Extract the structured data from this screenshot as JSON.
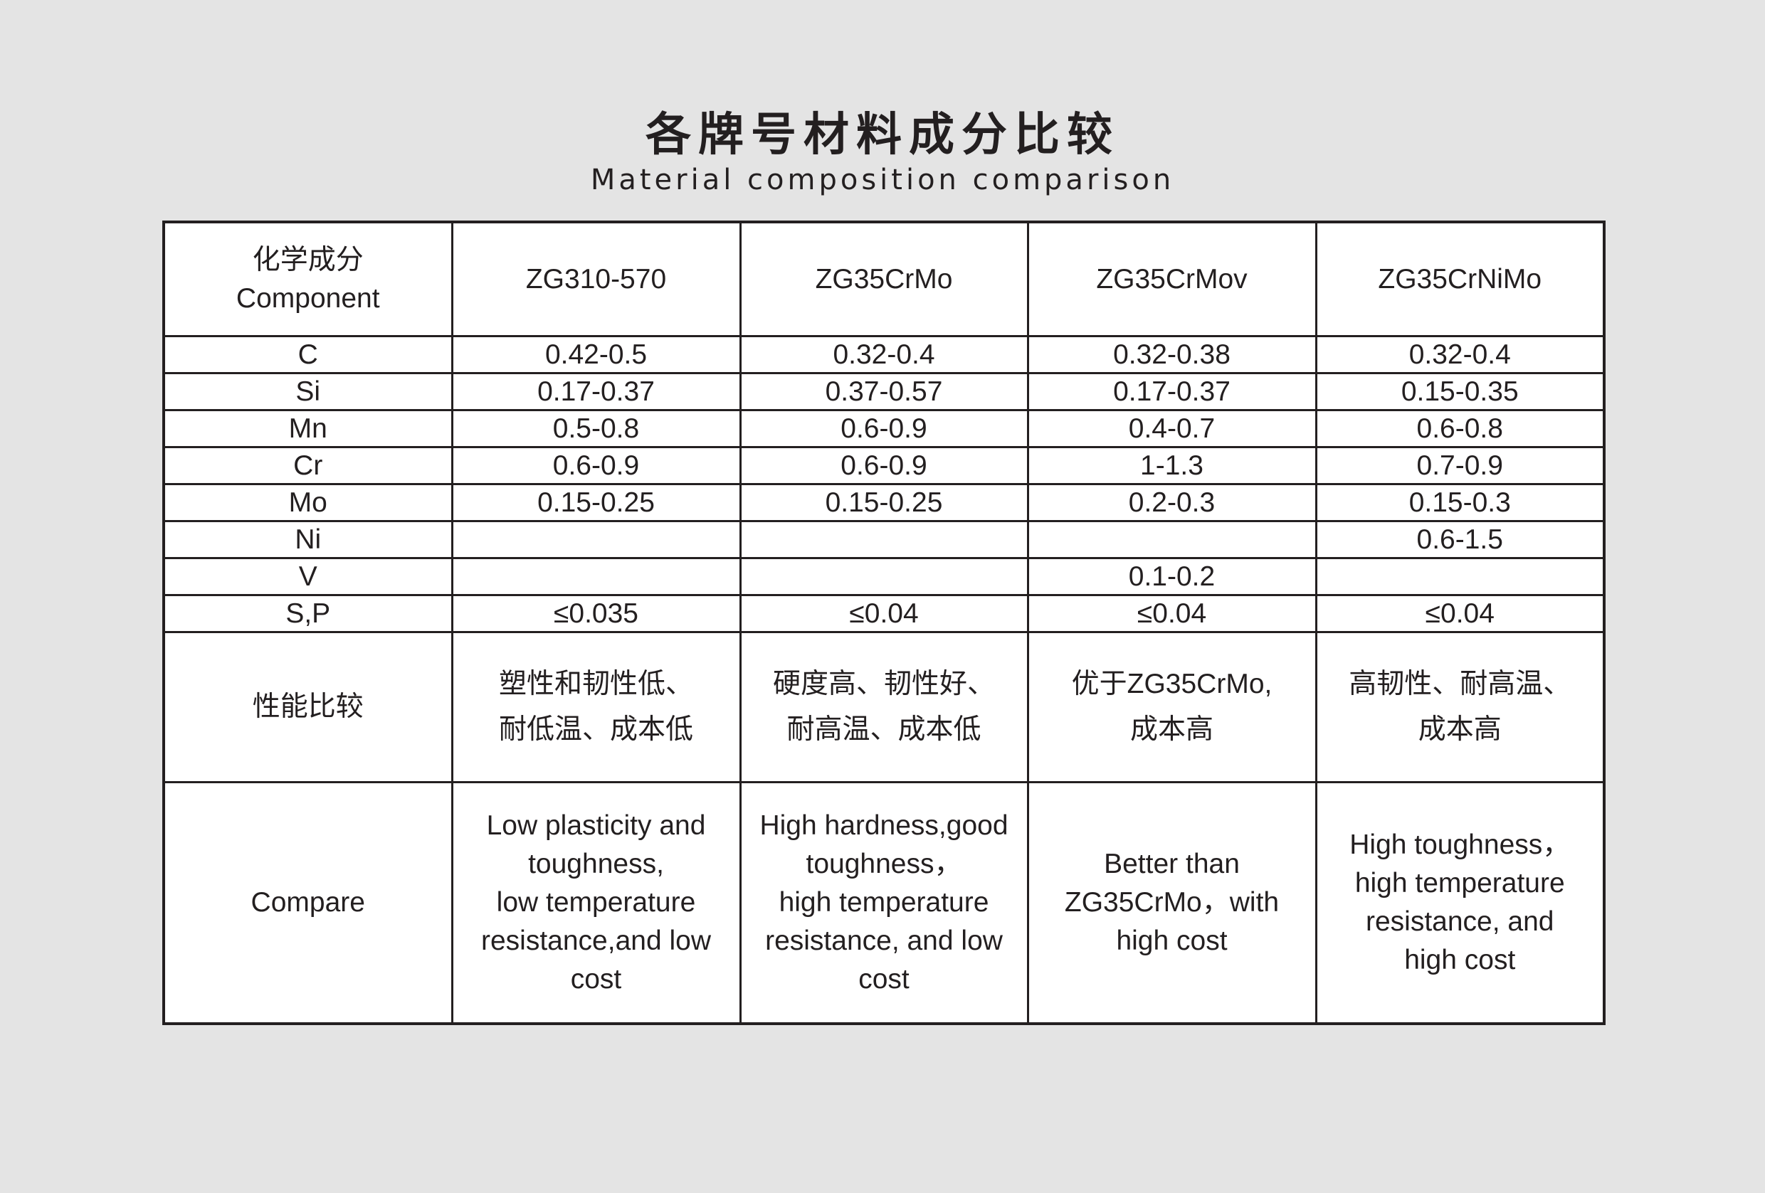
{
  "title": "各牌号材料成分比较",
  "subtitle": "Material composition comparison",
  "table": {
    "header": {
      "component_cn": "化学成分",
      "component_en": "Component",
      "grades": [
        "ZG310-570",
        "ZG35CrMo",
        "ZG35CrMov",
        "ZG35CrNiMo"
      ]
    },
    "rows": [
      {
        "element": "C",
        "values": [
          "0.42-0.5",
          "0.32-0.4",
          "0.32-0.38",
          "0.32-0.4"
        ]
      },
      {
        "element": "Si",
        "values": [
          "0.17-0.37",
          "0.37-0.57",
          "0.17-0.37",
          "0.15-0.35"
        ]
      },
      {
        "element": "Mn",
        "values": [
          "0.5-0.8",
          "0.6-0.9",
          "0.4-0.7",
          "0.6-0.8"
        ]
      },
      {
        "element": "Cr",
        "values": [
          "0.6-0.9",
          "0.6-0.9",
          "1-1.3",
          "0.7-0.9"
        ]
      },
      {
        "element": "Mo",
        "values": [
          "0.15-0.25",
          "0.15-0.25",
          "0.2-0.3",
          "0.15-0.3"
        ]
      },
      {
        "element": "Ni",
        "values": [
          "",
          "",
          "",
          "0.6-1.5"
        ]
      },
      {
        "element": "V",
        "values": [
          "",
          "",
          "0.1-0.2",
          ""
        ]
      },
      {
        "element": "S,P",
        "values": [
          "≤0.035",
          "≤0.04",
          "≤0.04",
          "≤0.04"
        ]
      }
    ],
    "performance": {
      "label": "性能比较",
      "values": [
        [
          "塑性和韧性低、",
          "耐低温、成本低"
        ],
        [
          "硬度高、韧性好、",
          "耐高温、成本低"
        ],
        [
          "优于ZG35CrMo,",
          "成本高"
        ],
        [
          "高韧性、耐高温、",
          "成本高"
        ]
      ]
    },
    "compare": {
      "label": "Compare",
      "values": [
        [
          "Low plasticity and",
          "toughness,",
          "low temperature",
          "resistance,and low",
          "cost"
        ],
        [
          "High hardness,good",
          "toughness，",
          "high temperature",
          "resistance, and low",
          "cost"
        ],
        [
          "Better than",
          "ZG35CrMo，with",
          "high cost"
        ],
        [
          "High toughness，",
          "high temperature",
          "resistance, and",
          "high cost"
        ]
      ]
    }
  }
}
